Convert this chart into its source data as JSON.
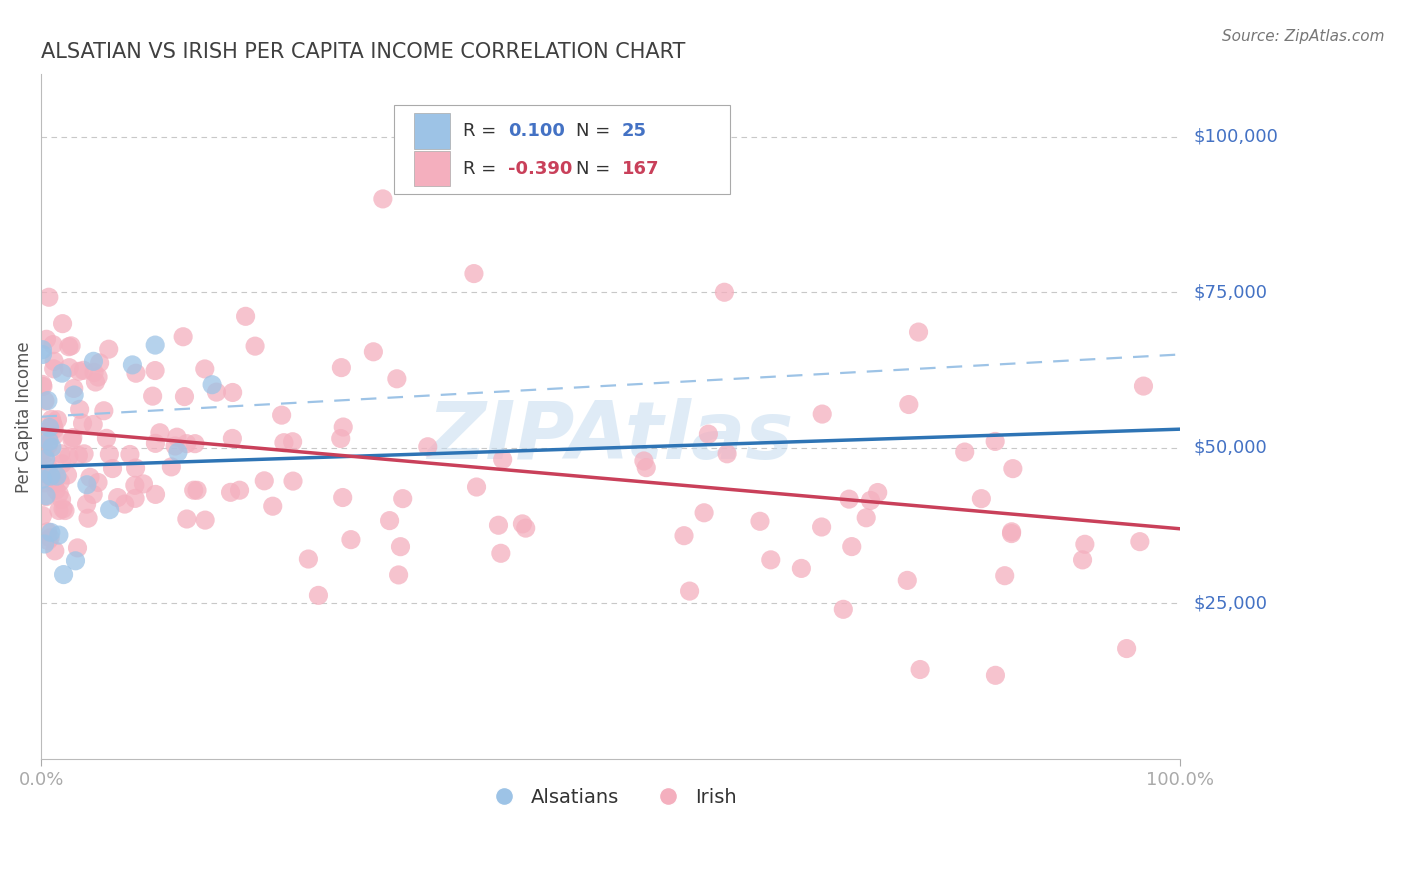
{
  "title": "ALSATIAN VS IRISH PER CAPITA INCOME CORRELATION CHART",
  "source": "Source: ZipAtlas.com",
  "ylabel": "Per Capita Income",
  "xlim": [
    0,
    1.0
  ],
  "ylim": [
    0,
    110000
  ],
  "x_ticks": [
    0.0,
    1.0
  ],
  "x_tick_labels": [
    "0.0%",
    "100.0%"
  ],
  "y_ticks": [
    25000,
    50000,
    75000,
    100000
  ],
  "y_tick_labels": [
    "$25,000",
    "$50,000",
    "$75,000",
    "$100,000"
  ],
  "background_color": "#ffffff",
  "grid_color": "#c8c8c8",
  "alsatian_color": "#9DC3E6",
  "irish_color": "#F4AFBE",
  "alsatian_R": 0.1,
  "alsatian_N": 25,
  "irish_R": -0.39,
  "irish_N": 167,
  "alsatian_line_color": "#2E74B5",
  "irish_line_color": "#C9405A",
  "dashed_line_color": "#9DC3E6",
  "title_color": "#404040",
  "axis_label_color": "#4472C4",
  "irish_label_color": "#C9405A",
  "alsatian_line_x": [
    0.0,
    1.0
  ],
  "alsatian_line_y": [
    47000,
    53000
  ],
  "irish_line_x": [
    0.0,
    1.0
  ],
  "irish_line_y": [
    53000,
    37000
  ],
  "dashed_line_x": [
    0.0,
    1.0
  ],
  "dashed_line_y": [
    55000,
    65000
  ],
  "watermark_text": "ZIPAtlas",
  "watermark_color": "#C5DCF0",
  "bottom_legend_1": "Alsatians",
  "bottom_legend_2": "Irish"
}
